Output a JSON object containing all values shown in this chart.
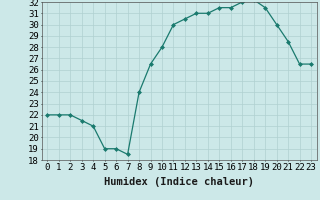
{
  "x": [
    0,
    1,
    2,
    3,
    4,
    5,
    6,
    7,
    8,
    9,
    10,
    11,
    12,
    13,
    14,
    15,
    16,
    17,
    18,
    19,
    20,
    21,
    22,
    23
  ],
  "y": [
    22.0,
    22.0,
    22.0,
    21.5,
    21.0,
    19.0,
    19.0,
    18.5,
    24.0,
    26.5,
    28.0,
    30.0,
    30.5,
    31.0,
    31.0,
    31.5,
    31.5,
    32.0,
    32.2,
    31.5,
    30.0,
    28.5,
    26.5,
    26.5
  ],
  "ylim": [
    18,
    32
  ],
  "yticks": [
    18,
    19,
    20,
    21,
    22,
    23,
    24,
    25,
    26,
    27,
    28,
    29,
    30,
    31,
    32
  ],
  "xlabel": "Humidex (Indice chaleur)",
  "line_color": "#1a7a6e",
  "marker_color": "#1a7a6e",
  "bg_color": "#cce8e8",
  "grid_color": "#b0d0d0",
  "xlabel_fontsize": 7.5,
  "tick_fontsize": 6.5
}
